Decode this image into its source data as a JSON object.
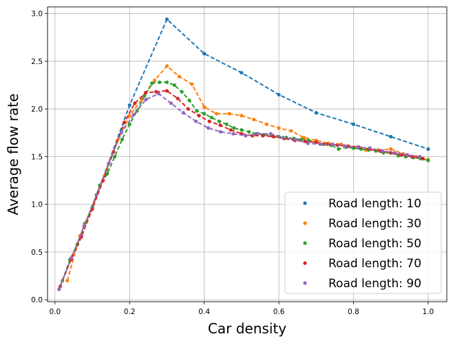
{
  "chart_data": {
    "type": "line",
    "xlabel": "Car density",
    "ylabel": "Average flow rate",
    "xlim": [
      -0.02,
      1.05
    ],
    "ylim": [
      -0.02,
      3.07
    ],
    "xticks": [
      0.0,
      0.2,
      0.4,
      0.6,
      0.8,
      1.0
    ],
    "xtick_labels": [
      "0.0",
      "0.2",
      "0.4",
      "0.6",
      "0.8",
      "1.0"
    ],
    "yticks": [
      0.0,
      0.5,
      1.0,
      1.5,
      2.0,
      2.5,
      3.0
    ],
    "ytick_labels": [
      "0.0",
      "0.5",
      "1.0",
      "1.5",
      "2.0",
      "2.5",
      "3.0"
    ],
    "grid": true,
    "legend_position": "lower-right",
    "line_style": "dashed",
    "marker": "circle",
    "series": [
      {
        "name": "Road length: 10",
        "color": "#1f77b4",
        "x": [
          0.1,
          0.2,
          0.3,
          0.4,
          0.5,
          0.6,
          0.7,
          0.8,
          0.9,
          1.0
        ],
        "y": [
          0.97,
          2.04,
          2.94,
          2.58,
          2.38,
          2.15,
          1.96,
          1.84,
          1.71,
          1.58
        ]
      },
      {
        "name": "Road length: 30",
        "color": "#ff7f0e",
        "x": [
          0.033,
          0.067,
          0.1,
          0.133,
          0.167,
          0.2,
          0.233,
          0.267,
          0.3,
          0.333,
          0.367,
          0.4,
          0.433,
          0.467,
          0.5,
          0.533,
          0.567,
          0.6,
          0.633,
          0.667,
          0.7,
          0.733,
          0.767,
          0.8,
          0.833,
          0.867,
          0.9,
          0.933,
          0.967,
          1.0
        ],
        "y": [
          0.2,
          0.67,
          0.96,
          1.3,
          1.67,
          1.93,
          2.1,
          2.3,
          2.45,
          2.34,
          2.26,
          2.02,
          1.95,
          1.95,
          1.93,
          1.89,
          1.84,
          1.8,
          1.77,
          1.7,
          1.67,
          1.64,
          1.63,
          1.6,
          1.57,
          1.57,
          1.58,
          1.53,
          1.5,
          1.47
        ]
      },
      {
        "name": "Road length: 50",
        "color": "#2ca02c",
        "x": [
          0.02,
          0.04,
          0.06,
          0.08,
          0.1,
          0.12,
          0.14,
          0.16,
          0.18,
          0.2,
          0.22,
          0.24,
          0.26,
          0.28,
          0.3,
          0.32,
          0.34,
          0.36,
          0.38,
          0.4,
          0.42,
          0.44,
          0.46,
          0.48,
          0.5,
          0.52,
          0.54,
          0.56,
          0.58,
          0.6,
          0.62,
          0.64,
          0.66,
          0.68,
          0.7,
          0.72,
          0.74,
          0.76,
          0.78,
          0.8,
          0.82,
          0.84,
          0.86,
          0.88,
          0.9,
          0.92,
          0.94,
          0.96,
          0.98,
          1.0
        ],
        "y": [
          0.2,
          0.42,
          0.58,
          0.8,
          0.97,
          1.2,
          1.32,
          1.5,
          1.68,
          1.84,
          1.98,
          2.14,
          2.27,
          2.28,
          2.28,
          2.25,
          2.18,
          2.09,
          1.98,
          1.95,
          1.91,
          1.87,
          1.84,
          1.8,
          1.78,
          1.76,
          1.74,
          1.73,
          1.72,
          1.71,
          1.7,
          1.69,
          1.68,
          1.67,
          1.65,
          1.63,
          1.62,
          1.58,
          1.6,
          1.59,
          1.58,
          1.57,
          1.56,
          1.54,
          1.54,
          1.51,
          1.5,
          1.49,
          1.48,
          1.46
        ]
      },
      {
        "name": "Road length: 70",
        "color": "#d62728",
        "x": [
          0.014,
          0.043,
          0.071,
          0.1,
          0.129,
          0.157,
          0.186,
          0.214,
          0.243,
          0.271,
          0.3,
          0.329,
          0.357,
          0.386,
          0.414,
          0.443,
          0.471,
          0.5,
          0.529,
          0.557,
          0.586,
          0.614,
          0.643,
          0.671,
          0.7,
          0.729,
          0.757,
          0.786,
          0.814,
          0.843,
          0.871,
          0.9,
          0.929,
          0.957,
          0.986
        ],
        "y": [
          0.14,
          0.42,
          0.66,
          0.95,
          1.25,
          1.55,
          1.86,
          2.06,
          2.17,
          2.18,
          2.19,
          2.11,
          2.0,
          1.93,
          1.87,
          1.83,
          1.78,
          1.74,
          1.72,
          1.72,
          1.71,
          1.69,
          1.67,
          1.66,
          1.65,
          1.63,
          1.62,
          1.61,
          1.6,
          1.58,
          1.56,
          1.54,
          1.52,
          1.5,
          1.48
        ]
      },
      {
        "name": "Road length: 90",
        "color": "#9467bd",
        "x": [
          0.011,
          0.044,
          0.078,
          0.111,
          0.144,
          0.178,
          0.211,
          0.244,
          0.278,
          0.311,
          0.344,
          0.378,
          0.411,
          0.444,
          0.478,
          0.511,
          0.544,
          0.578,
          0.611,
          0.644,
          0.678,
          0.711,
          0.744,
          0.778,
          0.811,
          0.844,
          0.878,
          0.911,
          0.944,
          0.978
        ],
        "y": [
          0.11,
          0.44,
          0.77,
          1.1,
          1.43,
          1.75,
          1.94,
          2.1,
          2.16,
          2.06,
          1.96,
          1.87,
          1.8,
          1.76,
          1.74,
          1.72,
          1.74,
          1.74,
          1.7,
          1.68,
          1.64,
          1.63,
          1.63,
          1.61,
          1.6,
          1.59,
          1.56,
          1.54,
          1.52,
          1.5
        ]
      }
    ]
  }
}
